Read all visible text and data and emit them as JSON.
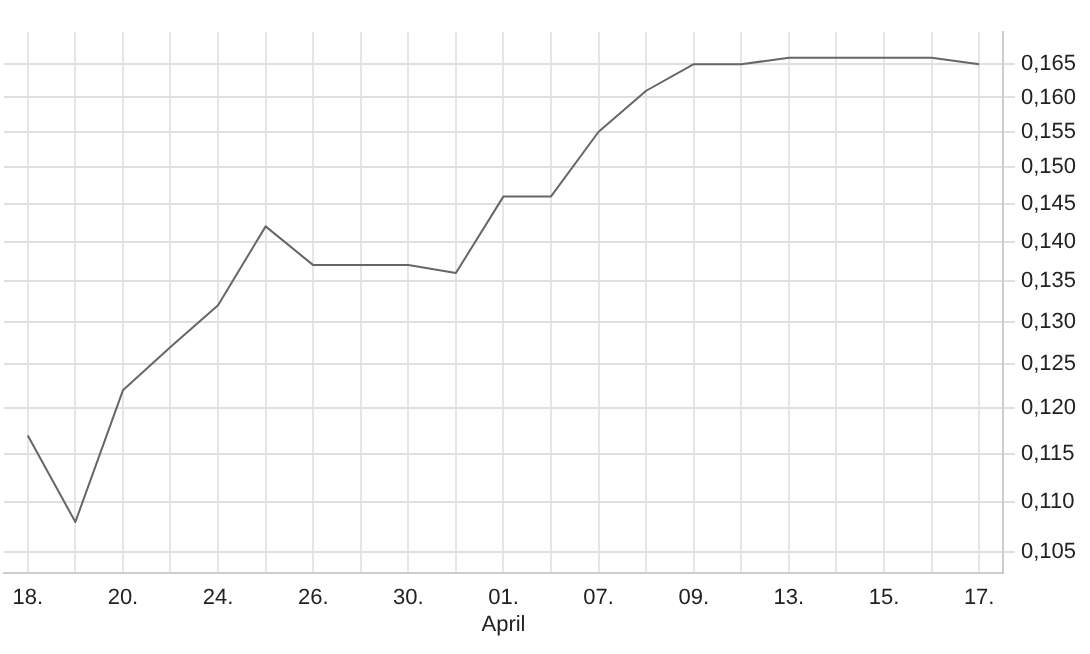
{
  "chart_data": {
    "type": "line",
    "categories": [
      "18.",
      null,
      "20.",
      null,
      "24.",
      null,
      "26.",
      null,
      "30.",
      null,
      "01.\nApril",
      null,
      "07.",
      null,
      "09.",
      null,
      "13.",
      null,
      "15.",
      null,
      "17."
    ],
    "series": [
      {
        "color": "#666666",
        "values": [
          0.117,
          0.108,
          0.122,
          0.127,
          0.132,
          0.142,
          0.137,
          0.137,
          0.137,
          0.136,
          0.146,
          0.146,
          0.155,
          0.161,
          0.165,
          0.165,
          0.166,
          0.166,
          0.166,
          0.166,
          0.165
        ]
      }
    ],
    "ylim": [
      0.103,
      0.17
    ],
    "yticks": [
      {
        "value": 0.105,
        "label": "0,105"
      },
      {
        "value": 0.11,
        "label": "0,110"
      },
      {
        "value": 0.115,
        "label": "0,115"
      },
      {
        "value": 0.12,
        "label": "0,120"
      },
      {
        "value": 0.125,
        "label": "0,125"
      },
      {
        "value": 0.13,
        "label": "0,130"
      },
      {
        "value": 0.135,
        "label": "0,135"
      },
      {
        "value": 0.14,
        "label": "0,140"
      },
      {
        "value": 0.145,
        "label": "0,145"
      },
      {
        "value": 0.15,
        "label": "0,150"
      },
      {
        "value": 0.155,
        "label": "0,155"
      },
      {
        "value": 0.16,
        "label": "0,160"
      },
      {
        "value": 0.165,
        "label": "0,165"
      }
    ],
    "log": true,
    "grid": true,
    "marker": "none",
    "line_style": "solid"
  }
}
